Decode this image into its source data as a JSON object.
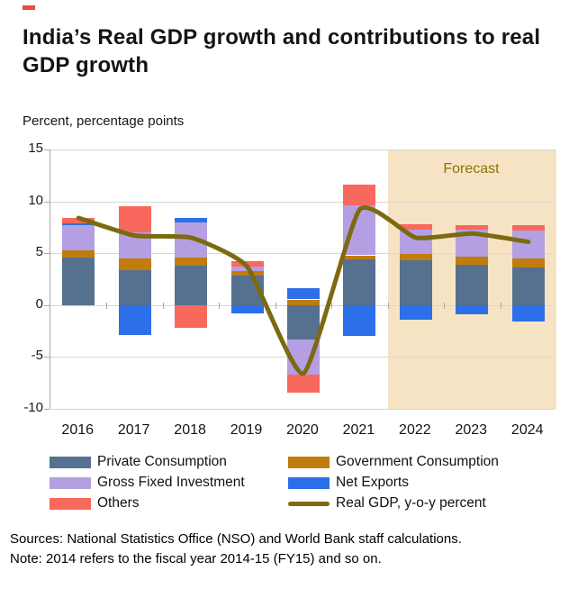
{
  "header": {
    "title": "India’s Real GDP growth and contributions to real GDP growth",
    "units_label": "Percent, percentage points",
    "corner_mark_color": "#e74c3c"
  },
  "chart_data": {
    "type": "bar",
    "subtype": "stacked-bar-with-line",
    "title": "India’s Real GDP growth and contributions to real GDP growth",
    "ylabel": "Percent, percentage points",
    "categories": [
      "2016",
      "2017",
      "2018",
      "2019",
      "2020",
      "2021",
      "2022",
      "2023",
      "2024"
    ],
    "series": [
      {
        "name": "Private Consumption",
        "color": "#55718f",
        "values": [
          4.6,
          3.4,
          3.8,
          2.85,
          -3.35,
          4.45,
          4.3,
          3.85,
          3.65
        ]
      },
      {
        "name": "Government Consumption",
        "color": "#c07c0c",
        "values": [
          0.7,
          1.1,
          0.8,
          0.45,
          0.55,
          0.35,
          0.6,
          0.8,
          0.85
        ]
      },
      {
        "name": "Gross Fixed Investment",
        "color": "#b49fe2",
        "values": [
          2.4,
          2.55,
          3.4,
          0.4,
          -3.35,
          4.8,
          2.4,
          2.65,
          2.65
        ]
      },
      {
        "name": "Net Exports",
        "color": "#2d6fe9",
        "values": [
          0.2,
          -2.9,
          0.4,
          -0.8,
          1.05,
          -3.0,
          -1.4,
          -0.9,
          -1.55
        ]
      },
      {
        "name": "Others",
        "color": "#f9685c",
        "values": [
          0.5,
          2.5,
          -2.2,
          0.55,
          -1.75,
          2.0,
          0.5,
          0.45,
          0.55
        ]
      }
    ],
    "line_series": {
      "name": "Real GDP, y-o-y percent",
      "color": "#7c6a11",
      "values": [
        8.4,
        6.7,
        6.5,
        3.7,
        -6.6,
        9.2,
        6.5,
        6.9,
        6.1
      ]
    },
    "ylim": [
      -10,
      15
    ],
    "yticks": [
      15,
      10,
      5,
      0,
      -5,
      -10
    ],
    "grid": "horizontal",
    "legend_position": "bottom",
    "forecast": {
      "label": "Forecast",
      "start_category": "2022",
      "band_color": "#f6e3c4",
      "label_color": "#8a7400"
    }
  },
  "footer": {
    "sources": "Sources: National Statistics Office (NSO) and World Bank staff calculations.",
    "note": "Note: 2014 refers to the fiscal year 2014-15 (FY15) and so on."
  }
}
